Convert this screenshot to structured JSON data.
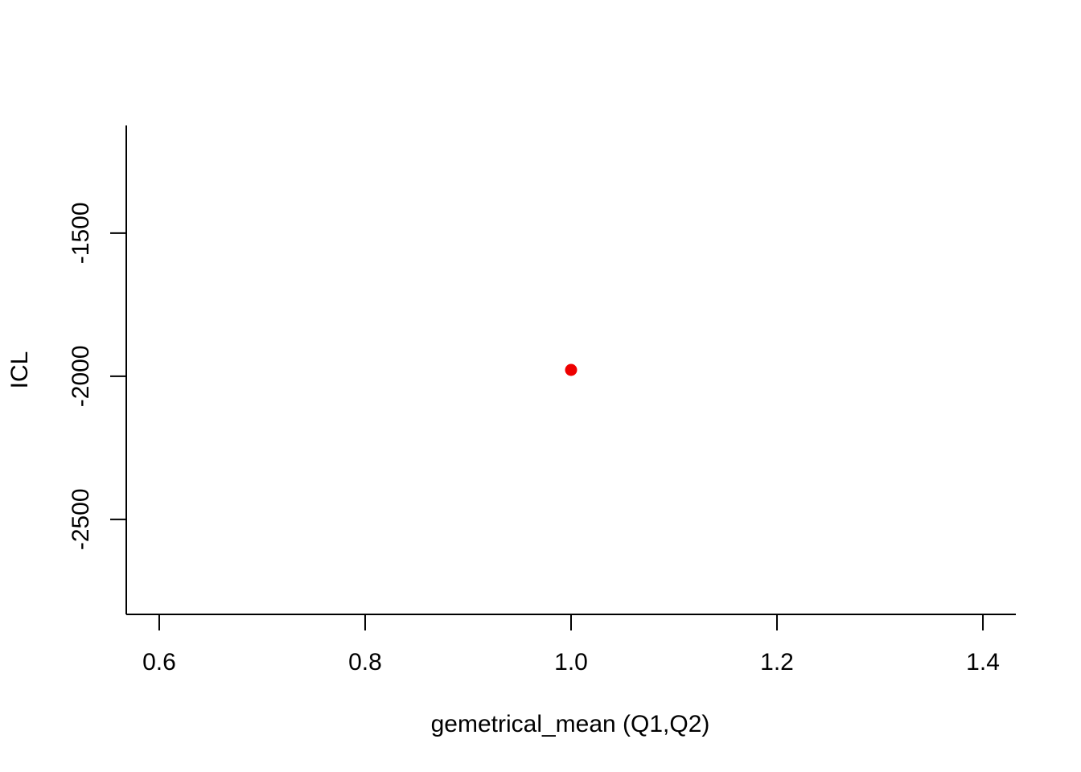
{
  "chart_data": {
    "type": "scatter",
    "title": "",
    "xlabel": "gemetrical_mean (Q1,Q2)",
    "ylabel": "ICL",
    "xlim": [
      0.568,
      1.432
    ],
    "ylim": [
      -2832,
      -1124
    ],
    "xticks": [
      0.6,
      0.8,
      1.0,
      1.2,
      1.4
    ],
    "xtick_labels": [
      "0.6",
      "0.8",
      "1.0",
      "1.2",
      "1.4"
    ],
    "yticks": [
      -2500,
      -2000,
      -1500
    ],
    "ytick_labels": [
      "-2500",
      "-2000",
      "-1500"
    ],
    "grid": false,
    "legend": "none",
    "point_color": "#ee0000",
    "points": [
      {
        "x": 1.0,
        "y": -1978
      }
    ]
  }
}
